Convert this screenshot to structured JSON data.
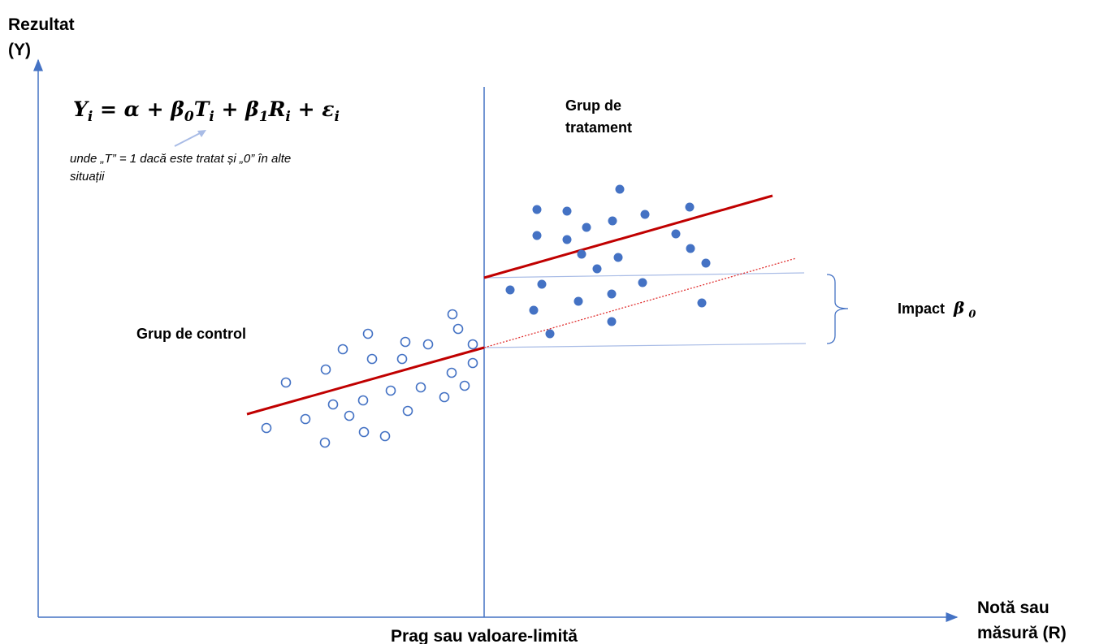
{
  "labels": {
    "y_axis_line1": "Rezultat",
    "y_axis_line2": "(Y)",
    "x_axis_line1": "Notă sau",
    "x_axis_line2": "măsură (R)",
    "threshold": "Prag sau valoare-limită",
    "treatment_line1": "Grup de",
    "treatment_line2": "tratament",
    "control": "Grup de control",
    "impact_word": "Impact",
    "impact_symbol": "β",
    "impact_subscript": "0"
  },
  "equation": {
    "Y": "Y",
    "i": "i",
    "eq_alpha": " = α + ",
    "beta": "β",
    "zero": "0",
    "T": "T",
    "plus1": " + ",
    "one": "1",
    "R": "R",
    "plus2": " + ",
    "epsilon": "ε",
    "note_line1": "unde „T” = 1 dacă este tratat și „0” în alte",
    "note_line2": "situații"
  },
  "colors": {
    "axis": "#4472c4",
    "point": "#4472c4",
    "fit_line": "#c00000",
    "guide": "#a9bce6",
    "text": "#000000"
  },
  "points": {
    "control_hollow": [
      [
        328,
        527
      ],
      [
        352,
        471
      ],
      [
        376,
        516
      ],
      [
        400,
        545
      ],
      [
        401,
        455
      ],
      [
        410,
        498
      ],
      [
        422,
        430
      ],
      [
        430,
        512
      ],
      [
        448,
        532
      ],
      [
        447,
        493
      ],
      [
        453,
        411
      ],
      [
        458,
        442
      ],
      [
        474,
        537
      ],
      [
        481,
        481
      ],
      [
        495,
        442
      ],
      [
        499,
        421
      ],
      [
        502,
        506
      ],
      [
        518,
        477
      ],
      [
        527,
        424
      ],
      [
        547,
        489
      ],
      [
        556,
        459
      ],
      [
        557,
        387
      ],
      [
        564,
        405
      ],
      [
        572,
        475
      ],
      [
        582,
        447
      ],
      [
        582,
        424
      ]
    ],
    "treatment_filled": [
      [
        628,
        357
      ],
      [
        657,
        382
      ],
      [
        661,
        258
      ],
      [
        661,
        290
      ],
      [
        667,
        350
      ],
      [
        677,
        411
      ],
      [
        698,
        260
      ],
      [
        698,
        295
      ],
      [
        712,
        371
      ],
      [
        716,
        313
      ],
      [
        722,
        280
      ],
      [
        735,
        331
      ],
      [
        753,
        362
      ],
      [
        753,
        396
      ],
      [
        754,
        272
      ],
      [
        761,
        317
      ],
      [
        763,
        233
      ],
      [
        791,
        348
      ],
      [
        794,
        264
      ],
      [
        832,
        288
      ],
      [
        849,
        255
      ],
      [
        850,
        306
      ],
      [
        864,
        373
      ],
      [
        869,
        324
      ]
    ]
  }
}
